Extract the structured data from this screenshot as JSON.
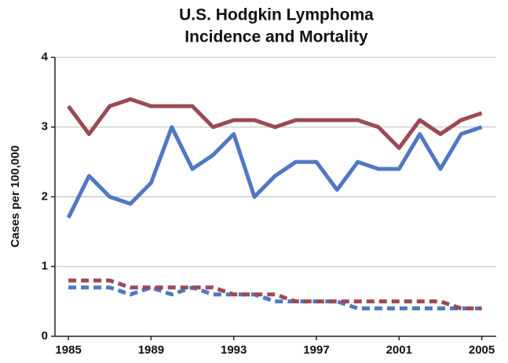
{
  "chart_data": {
    "type": "line",
    "title": [
      "U.S. Hodgkin Lymphoma",
      "Incidence and Mortality"
    ],
    "y_label": "Cases per 100,000",
    "x": [
      1985,
      1986,
      1987,
      1988,
      1989,
      1990,
      1991,
      1992,
      1993,
      1994,
      1995,
      1996,
      1997,
      1998,
      1999,
      2000,
      2001,
      2002,
      2003,
      2004,
      2005
    ],
    "series": [
      {
        "color": "#9b4a55",
        "dashed": false,
        "values": [
          3.3,
          2.9,
          3.3,
          3.4,
          3.3,
          3.3,
          3.3,
          3.0,
          3.1,
          3.1,
          3.0,
          3.1,
          3.1,
          3.1,
          3.1,
          3.0,
          2.7,
          3.1,
          2.9,
          3.1,
          3.2
        ]
      },
      {
        "color": "#5078c3",
        "dashed": false,
        "values": [
          1.7,
          2.3,
          2.0,
          1.9,
          2.2,
          3.0,
          2.4,
          2.6,
          2.9,
          2.0,
          2.3,
          2.5,
          2.5,
          2.1,
          2.5,
          2.4,
          2.4,
          2.9,
          2.4,
          2.9,
          3.0
        ]
      },
      {
        "color": "#5078c3",
        "dashed": true,
        "values": [
          0.7,
          0.7,
          0.7,
          0.6,
          0.7,
          0.6,
          0.7,
          0.6,
          0.6,
          0.6,
          0.5,
          0.5,
          0.5,
          0.5,
          0.4,
          0.4,
          0.4,
          0.4,
          0.4,
          0.4,
          0.4
        ]
      },
      {
        "color": "#9b4a55",
        "dashed": true,
        "values": [
          0.8,
          0.8,
          0.8,
          0.7,
          0.7,
          0.7,
          0.7,
          0.7,
          0.6,
          0.6,
          0.6,
          0.5,
          0.5,
          0.5,
          0.5,
          0.5,
          0.5,
          0.5,
          0.5,
          0.4,
          0.4
        ]
      }
    ],
    "xlim": [
      1984.35,
      2005.7
    ],
    "xticks": [
      1985,
      1989,
      1993,
      1997,
      2001,
      2005
    ],
    "ylim": [
      0,
      4
    ],
    "yticks": [
      0,
      1,
      2,
      3,
      4
    ],
    "grid": true
  }
}
